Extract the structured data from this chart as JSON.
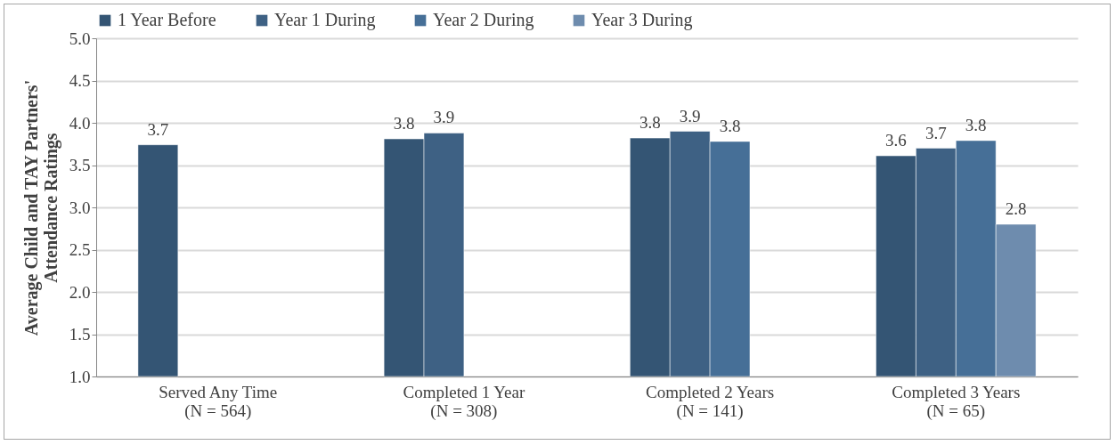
{
  "chart_data": {
    "type": "bar",
    "ylabel": "Average Child and TAY Partners'\nAttendance Ratings",
    "categories": [
      "Served Any Time\n(N = 564)",
      "Completed 1 Year\n(N = 308)",
      "Completed 2 Years\n(N = 141)",
      "Completed 3 Years\n(N = 65)"
    ],
    "series": [
      {
        "name": "1 Year Before",
        "color": "#345574",
        "values": [
          3.74,
          3.81,
          3.82,
          3.61
        ],
        "value_labels": [
          "3.7",
          "3.8",
          "3.8",
          "3.6"
        ]
      },
      {
        "name": "Year 1 During",
        "color": "#3e6184",
        "values": [
          null,
          3.88,
          3.9,
          3.7
        ],
        "value_labels": [
          null,
          "3.9",
          "3.9",
          "3.7"
        ]
      },
      {
        "name": "Year 2 During",
        "color": "#466f97",
        "values": [
          null,
          null,
          3.78,
          3.79
        ],
        "value_labels": [
          null,
          null,
          "3.8",
          "3.8"
        ]
      },
      {
        "name": "Year 3 During",
        "color": "#6e8cae",
        "values": [
          null,
          null,
          null,
          2.8
        ],
        "value_labels": [
          null,
          null,
          null,
          "2.8"
        ]
      }
    ],
    "ylim": [
      1.0,
      5.0
    ],
    "yticks": [
      {
        "value": 1,
        "label": "1.0"
      },
      {
        "value": 1.5,
        "label": "1.5"
      },
      {
        "value": 2,
        "label": "2.0"
      },
      {
        "value": 2.5,
        "label": "2.5"
      },
      {
        "value": 3,
        "label": "3.0"
      },
      {
        "value": 3.5,
        "label": "3.5"
      },
      {
        "value": 4,
        "label": "4.0"
      },
      {
        "value": 4.5,
        "label": "4.5"
      },
      {
        "value": 5,
        "label": "5.0"
      }
    ],
    "grid": "y",
    "legend": "top"
  }
}
